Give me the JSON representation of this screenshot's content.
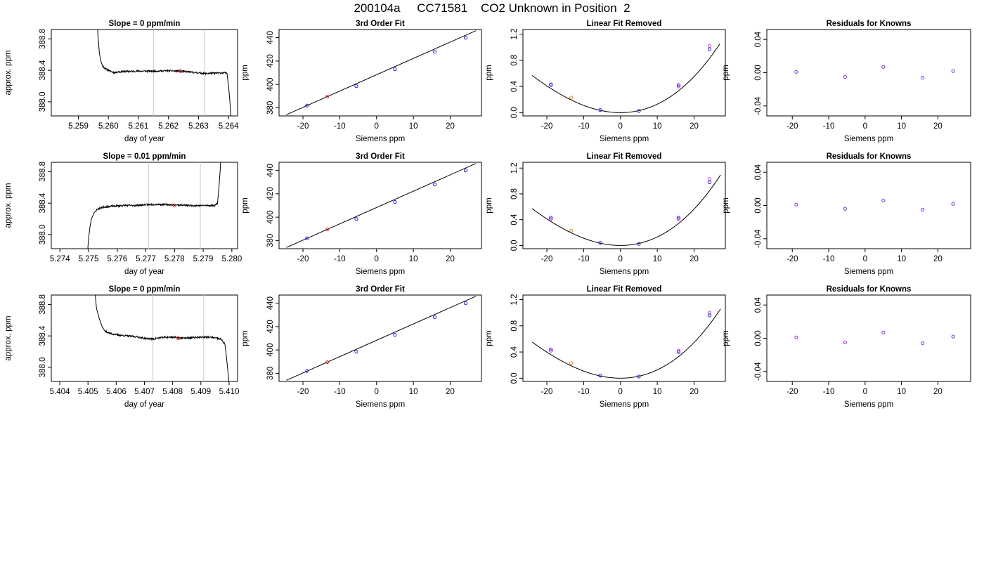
{
  "main_title": "200104a     CC71581    CO2 Unknown in Position  2",
  "colors": {
    "trace": "#000000",
    "marker_red": "#e8262b",
    "marker_blue": "#2222dd",
    "marker_magenta": "#cc33cc",
    "marker_orange": "#f08020",
    "marker_purple": "#7b2fd9",
    "vline": "#c8c8c8",
    "axis": "#000000"
  },
  "chart_data": [
    {
      "type": "line",
      "panel": "timeseries",
      "row": 0,
      "title": "Slope =  0  ppm/min",
      "xlabel": "day of year",
      "ylabel": "approx. ppm",
      "xlim": [
        5.2581,
        5.2643
      ],
      "ylim": [
        387.82,
        388.92
      ],
      "xticks": [
        5.259,
        5.26,
        5.261,
        5.262,
        5.263,
        5.264
      ],
      "xtick_labels": [
        "5.259",
        "5.260",
        "5.261",
        "5.262",
        "5.263",
        "5.264"
      ],
      "yticks": [
        388.0,
        388.4,
        388.8
      ],
      "ytick_labels": [
        "388.0",
        "388.4",
        "388.8"
      ],
      "vlines": [
        5.2615,
        5.2632
      ],
      "marker": {
        "x": 5.2624,
        "y": 388.39
      },
      "trace": {
        "x0": 5.2596,
        "x1": 5.2641,
        "noise_seed": 11,
        "knots": [
          [
            5.2596,
            389.3
          ],
          [
            5.25965,
            388.85
          ],
          [
            5.2597,
            388.62
          ],
          [
            5.25975,
            388.52
          ],
          [
            5.2598,
            388.46
          ],
          [
            5.2599,
            388.42
          ],
          [
            5.26,
            388.4
          ],
          [
            5.2601,
            388.385
          ],
          [
            5.2602,
            388.37
          ],
          [
            5.2603,
            388.38
          ],
          [
            5.2605,
            388.385
          ],
          [
            5.261,
            388.39
          ],
          [
            5.2615,
            388.39
          ],
          [
            5.262,
            388.395
          ],
          [
            5.2624,
            388.39
          ],
          [
            5.2628,
            388.375
          ],
          [
            5.2632,
            388.36
          ],
          [
            5.2636,
            388.365
          ],
          [
            5.2639,
            388.37
          ],
          [
            5.26395,
            388.35
          ],
          [
            5.264,
            388.2
          ],
          [
            5.26405,
            387.98
          ],
          [
            5.2641,
            387.6
          ]
        ]
      }
    },
    {
      "type": "scatter",
      "panel": "fit",
      "row": 0,
      "title": "3rd Order Fit",
      "xlabel": "Siemens ppm",
      "ylabel": "ppm",
      "xlim": [
        -26.5,
        28.5
      ],
      "ylim": [
        373,
        447
      ],
      "xticks": [
        -20,
        -10,
        0,
        10,
        20
      ],
      "xtick_labels": [
        "-20",
        "-10",
        "0",
        "10",
        "20"
      ],
      "yticks": [
        380,
        400,
        420,
        440
      ],
      "ytick_labels": [
        "380",
        "400",
        "420",
        "440"
      ],
      "line": {
        "x": [
          -24.5,
          27
        ],
        "y": [
          374.0,
          446.0
        ]
      },
      "points": [
        {
          "x": -18.9,
          "y": 381.9,
          "color": "blue"
        },
        {
          "x": -13.4,
          "y": 389.5,
          "color": "red"
        },
        {
          "x": -5.5,
          "y": 398.5,
          "color": "blue"
        },
        {
          "x": 5.0,
          "y": 413.0,
          "color": "blue"
        },
        {
          "x": 15.8,
          "y": 428.0,
          "color": "blue"
        },
        {
          "x": 24.2,
          "y": 440.0,
          "color": "blue"
        }
      ]
    },
    {
      "type": "scatter",
      "panel": "linfit",
      "row": 0,
      "title": "Linear Fit Removed",
      "xlabel": "Siemens ppm",
      "ylabel": "ppm",
      "xlim": [
        -26.5,
        28.5
      ],
      "ylim": [
        -0.05,
        1.27
      ],
      "xticks": [
        -20,
        -10,
        0,
        10,
        20
      ],
      "xtick_labels": [
        "-20",
        "-10",
        "0",
        "10",
        "20"
      ],
      "yticks": [
        0.0,
        0.4,
        0.8,
        1.2
      ],
      "ytick_labels": [
        "0.0",
        "0.4",
        "0.8",
        "1.2"
      ],
      "curve": {
        "x0": -24,
        "x1": 27,
        "coef_a": 0.0012,
        "coef_b": 0.0,
        "coef_c": 0.0,
        "cubic": 8.9e-06
      },
      "points": [
        {
          "x": -18.9,
          "y": 0.42,
          "color": "magenta"
        },
        {
          "x": -18.9,
          "y": 0.43,
          "color": "blue"
        },
        {
          "x": -13.4,
          "y": 0.23,
          "color": "orange"
        },
        {
          "x": -5.5,
          "y": 0.04,
          "color": "blue"
        },
        {
          "x": 5.0,
          "y": 0.025,
          "color": "blue"
        },
        {
          "x": 15.8,
          "y": 0.4,
          "color": "magenta"
        },
        {
          "x": 15.8,
          "y": 0.42,
          "color": "blue"
        },
        {
          "x": 24.2,
          "y": 1.02,
          "color": "magenta"
        },
        {
          "x": 24.2,
          "y": 0.97,
          "color": "blue"
        }
      ]
    },
    {
      "type": "scatter",
      "panel": "resid",
      "row": 0,
      "title": "Residuals for Knowns",
      "xlabel": "Siemens ppm",
      "ylabel": "ppm",
      "xlim": [
        -27,
        29
      ],
      "ylim": [
        -0.052,
        0.052
      ],
      "xticks": [
        -20,
        -10,
        0,
        10,
        20
      ],
      "xtick_labels": [
        "-20",
        "-10",
        "0",
        "10",
        "20"
      ],
      "yticks": [
        -0.04,
        0.0,
        0.04
      ],
      "ytick_labels": [
        "-0.04",
        "0.00",
        "0.04"
      ],
      "points": [
        {
          "x": -18.9,
          "y": 0.001,
          "color": "purple"
        },
        {
          "x": -5.5,
          "y": -0.005,
          "color": "purple"
        },
        {
          "x": 5.0,
          "y": 0.007,
          "color": "purple"
        },
        {
          "x": 15.8,
          "y": -0.006,
          "color": "purple"
        },
        {
          "x": 24.2,
          "y": 0.002,
          "color": "purple"
        }
      ]
    },
    {
      "type": "line",
      "panel": "timeseries",
      "row": 1,
      "title": "Slope =  0.01  ppm/min",
      "xlabel": "day of year",
      "ylabel": "approx. ppm",
      "xlim": [
        5.2737,
        5.2802
      ],
      "ylim": [
        387.82,
        388.92
      ],
      "xticks": [
        5.274,
        5.275,
        5.276,
        5.277,
        5.278,
        5.279,
        5.28
      ],
      "xtick_labels": [
        "5.274",
        "5.275",
        "5.276",
        "5.277",
        "5.278",
        "5.279",
        "5.280"
      ],
      "yticks": [
        388.0,
        388.4,
        388.8
      ],
      "ytick_labels": [
        "388.0",
        "388.4",
        "388.8"
      ],
      "vlines": [
        5.2771,
        5.2789
      ],
      "marker": {
        "x": 5.278,
        "y": 388.37
      },
      "trace": {
        "x0": 5.27495,
        "x1": 5.27965,
        "noise_seed": 23,
        "knots": [
          [
            5.27495,
            387.7
          ],
          [
            5.275,
            387.95
          ],
          [
            5.27505,
            388.1
          ],
          [
            5.2751,
            388.2
          ],
          [
            5.2752,
            388.28
          ],
          [
            5.2753,
            388.32
          ],
          [
            5.2755,
            388.35
          ],
          [
            5.2758,
            388.36
          ],
          [
            5.2762,
            388.37
          ],
          [
            5.2766,
            388.37
          ],
          [
            5.277,
            388.38
          ],
          [
            5.2774,
            388.385
          ],
          [
            5.2778,
            388.38
          ],
          [
            5.2782,
            388.375
          ],
          [
            5.2786,
            388.37
          ],
          [
            5.279,
            388.37
          ],
          [
            5.2794,
            388.37
          ],
          [
            5.2795,
            388.4
          ],
          [
            5.27955,
            388.6
          ],
          [
            5.2796,
            388.85
          ],
          [
            5.27965,
            389.3
          ]
        ]
      }
    },
    {
      "type": "scatter",
      "panel": "fit",
      "row": 1,
      "title": "3rd Order Fit",
      "xlabel": "Siemens ppm",
      "ylabel": "ppm",
      "xlim": [
        -26.5,
        28.5
      ],
      "ylim": [
        373,
        447
      ],
      "xticks": [
        -20,
        -10,
        0,
        10,
        20
      ],
      "xtick_labels": [
        "-20",
        "-10",
        "0",
        "10",
        "20"
      ],
      "yticks": [
        380,
        400,
        420,
        440
      ],
      "ytick_labels": [
        "380",
        "400",
        "420",
        "440"
      ],
      "line": {
        "x": [
          -24.5,
          27
        ],
        "y": [
          374.0,
          446.0
        ]
      },
      "points": [
        {
          "x": -18.9,
          "y": 381.9,
          "color": "blue"
        },
        {
          "x": -13.4,
          "y": 389.5,
          "color": "red"
        },
        {
          "x": -5.5,
          "y": 398.5,
          "color": "blue"
        },
        {
          "x": 5.0,
          "y": 413.0,
          "color": "blue"
        },
        {
          "x": 15.8,
          "y": 428.0,
          "color": "blue"
        },
        {
          "x": 24.2,
          "y": 440.0,
          "color": "blue"
        }
      ]
    },
    {
      "type": "scatter",
      "panel": "linfit",
      "row": 1,
      "title": "Linear Fit Removed",
      "xlabel": "Siemens ppm",
      "ylabel": "ppm",
      "xlim": [
        -26.5,
        28.5
      ],
      "ylim": [
        -0.05,
        1.29
      ],
      "xticks": [
        -20,
        -10,
        0,
        10,
        20
      ],
      "xtick_labels": [
        "-20",
        "-10",
        "0",
        "10",
        "20"
      ],
      "yticks": [
        0.0,
        0.4,
        0.8,
        1.2
      ],
      "ytick_labels": [
        "0.0",
        "0.4",
        "0.8",
        "1.2"
      ],
      "curve": {
        "x0": -24,
        "x1": 27.2,
        "coef_a": 0.00122,
        "coef_b": 0.0,
        "coef_c": 0.0,
        "cubic": 9.5e-06
      },
      "points": [
        {
          "x": -18.9,
          "y": 0.41,
          "color": "magenta"
        },
        {
          "x": -18.9,
          "y": 0.43,
          "color": "blue"
        },
        {
          "x": -13.4,
          "y": 0.23,
          "color": "orange"
        },
        {
          "x": -5.5,
          "y": 0.04,
          "color": "blue"
        },
        {
          "x": 5.0,
          "y": 0.025,
          "color": "blue"
        },
        {
          "x": 15.8,
          "y": 0.41,
          "color": "magenta"
        },
        {
          "x": 15.8,
          "y": 0.43,
          "color": "blue"
        },
        {
          "x": 24.2,
          "y": 1.03,
          "color": "magenta"
        },
        {
          "x": 24.2,
          "y": 0.98,
          "color": "blue"
        }
      ]
    },
    {
      "type": "scatter",
      "panel": "resid",
      "row": 1,
      "title": "Residuals for Knowns",
      "xlabel": "Siemens ppm",
      "ylabel": "ppm",
      "xlim": [
        -27,
        29
      ],
      "ylim": [
        -0.052,
        0.052
      ],
      "xticks": [
        -20,
        -10,
        0,
        10,
        20
      ],
      "xtick_labels": [
        "-20",
        "-10",
        "0",
        "10",
        "20"
      ],
      "yticks": [
        -0.04,
        0.0,
        0.04
      ],
      "ytick_labels": [
        "-0.04",
        "0.00",
        "0.04"
      ],
      "points": [
        {
          "x": -18.9,
          "y": 0.001,
          "color": "purple"
        },
        {
          "x": -5.5,
          "y": -0.004,
          "color": "purple"
        },
        {
          "x": 5.0,
          "y": 0.006,
          "color": "purple"
        },
        {
          "x": 15.8,
          "y": -0.005,
          "color": "purple"
        },
        {
          "x": 24.2,
          "y": 0.002,
          "color": "purple"
        }
      ]
    },
    {
      "type": "line",
      "panel": "timeseries",
      "row": 2,
      "title": "Slope =  0  ppm/min",
      "xlabel": "day of year",
      "ylabel": "approx. ppm",
      "xlim": [
        5.4037,
        5.4103
      ],
      "ylim": [
        387.82,
        388.92
      ],
      "xticks": [
        5.404,
        5.405,
        5.406,
        5.407,
        5.408,
        5.409,
        5.41
      ],
      "xtick_labels": [
        "5.404",
        "5.405",
        "5.406",
        "5.407",
        "5.408",
        "5.409",
        "5.410"
      ],
      "yticks": [
        388.0,
        388.4,
        388.8
      ],
      "ytick_labels": [
        "388.0",
        "388.4",
        "388.8"
      ],
      "vlines": [
        5.4073,
        5.4091
      ],
      "marker": {
        "x": 5.4082,
        "y": 388.37
      },
      "trace": {
        "x0": 5.4052,
        "x1": 5.41005,
        "noise_seed": 37,
        "knots": [
          [
            5.4052,
            389.3
          ],
          [
            5.40525,
            388.95
          ],
          [
            5.4053,
            388.75
          ],
          [
            5.4054,
            388.62
          ],
          [
            5.4055,
            388.52
          ],
          [
            5.4056,
            388.46
          ],
          [
            5.4058,
            388.43
          ],
          [
            5.4061,
            388.41
          ],
          [
            5.4064,
            388.4
          ],
          [
            5.4067,
            388.39
          ],
          [
            5.407,
            388.37
          ],
          [
            5.4073,
            388.36
          ],
          [
            5.4076,
            388.38
          ],
          [
            5.408,
            388.385
          ],
          [
            5.4084,
            388.37
          ],
          [
            5.4088,
            388.38
          ],
          [
            5.4091,
            388.385
          ],
          [
            5.4094,
            388.38
          ],
          [
            5.4097,
            388.36
          ],
          [
            5.40985,
            388.3
          ],
          [
            5.4099,
            388.15
          ],
          [
            5.40995,
            387.98
          ],
          [
            5.41005,
            387.6
          ]
        ]
      }
    },
    {
      "type": "scatter",
      "panel": "fit",
      "row": 2,
      "title": "3rd Order Fit",
      "xlabel": "Siemens ppm",
      "ylabel": "ppm",
      "xlim": [
        -26.5,
        28.5
      ],
      "ylim": [
        373,
        447
      ],
      "xticks": [
        -20,
        -10,
        0,
        10,
        20
      ],
      "xtick_labels": [
        "-20",
        "-10",
        "0",
        "10",
        "20"
      ],
      "yticks": [
        380,
        400,
        420,
        440
      ],
      "ytick_labels": [
        "380",
        "400",
        "420",
        "440"
      ],
      "line": {
        "x": [
          -24.5,
          27
        ],
        "y": [
          374.0,
          446.0
        ]
      },
      "points": [
        {
          "x": -18.9,
          "y": 381.9,
          "color": "blue"
        },
        {
          "x": -13.4,
          "y": 389.5,
          "color": "red"
        },
        {
          "x": -5.5,
          "y": 398.5,
          "color": "blue"
        },
        {
          "x": 5.0,
          "y": 413.0,
          "color": "blue"
        },
        {
          "x": 15.8,
          "y": 428.0,
          "color": "blue"
        },
        {
          "x": 24.2,
          "y": 440.0,
          "color": "blue"
        }
      ]
    },
    {
      "type": "scatter",
      "panel": "linfit",
      "row": 2,
      "title": "Linear Fit Removed",
      "xlabel": "Siemens ppm",
      "ylabel": "ppm",
      "xlim": [
        -26.5,
        28.5
      ],
      "ylim": [
        -0.05,
        1.27
      ],
      "xticks": [
        -20,
        -10,
        0,
        10,
        20
      ],
      "xtick_labels": [
        "-20",
        "-10",
        "0",
        "10",
        "20"
      ],
      "yticks": [
        0.0,
        0.4,
        0.8,
        1.2
      ],
      "ytick_labels": [
        "0.0",
        "0.4",
        "0.8",
        "1.2"
      ],
      "curve": {
        "x0": -24,
        "x1": 27.2,
        "coef_a": 0.00118,
        "coef_b": 0.0,
        "coef_c": 0.0,
        "cubic": 9.2e-06
      },
      "points": [
        {
          "x": -18.9,
          "y": 0.42,
          "color": "magenta"
        },
        {
          "x": -18.9,
          "y": 0.44,
          "color": "blue"
        },
        {
          "x": -13.4,
          "y": 0.23,
          "color": "orange"
        },
        {
          "x": -5.5,
          "y": 0.04,
          "color": "blue"
        },
        {
          "x": 5.0,
          "y": 0.025,
          "color": "blue"
        },
        {
          "x": 15.8,
          "y": 0.4,
          "color": "blue"
        },
        {
          "x": 15.8,
          "y": 0.42,
          "color": "magenta"
        },
        {
          "x": 24.2,
          "y": 1.0,
          "color": "magenta"
        },
        {
          "x": 24.2,
          "y": 0.96,
          "color": "blue"
        }
      ]
    },
    {
      "type": "scatter",
      "panel": "resid",
      "row": 2,
      "title": "Residuals for Knowns",
      "xlabel": "Siemens ppm",
      "ylabel": "ppm",
      "xlim": [
        -27,
        29
      ],
      "ylim": [
        -0.052,
        0.052
      ],
      "xticks": [
        -20,
        -10,
        0,
        10,
        20
      ],
      "xtick_labels": [
        "-20",
        "-10",
        "0",
        "10",
        "20"
      ],
      "yticks": [
        -0.04,
        0.0,
        0.04
      ],
      "ytick_labels": [
        "-0.04",
        "0.00",
        "0.04"
      ],
      "points": [
        {
          "x": -18.9,
          "y": 0.001,
          "color": "purple"
        },
        {
          "x": -5.5,
          "y": -0.005,
          "color": "purple"
        },
        {
          "x": 5.0,
          "y": 0.007,
          "color": "purple"
        },
        {
          "x": 15.8,
          "y": -0.006,
          "color": "purple"
        },
        {
          "x": 24.2,
          "y": 0.002,
          "color": "purple"
        }
      ]
    }
  ]
}
